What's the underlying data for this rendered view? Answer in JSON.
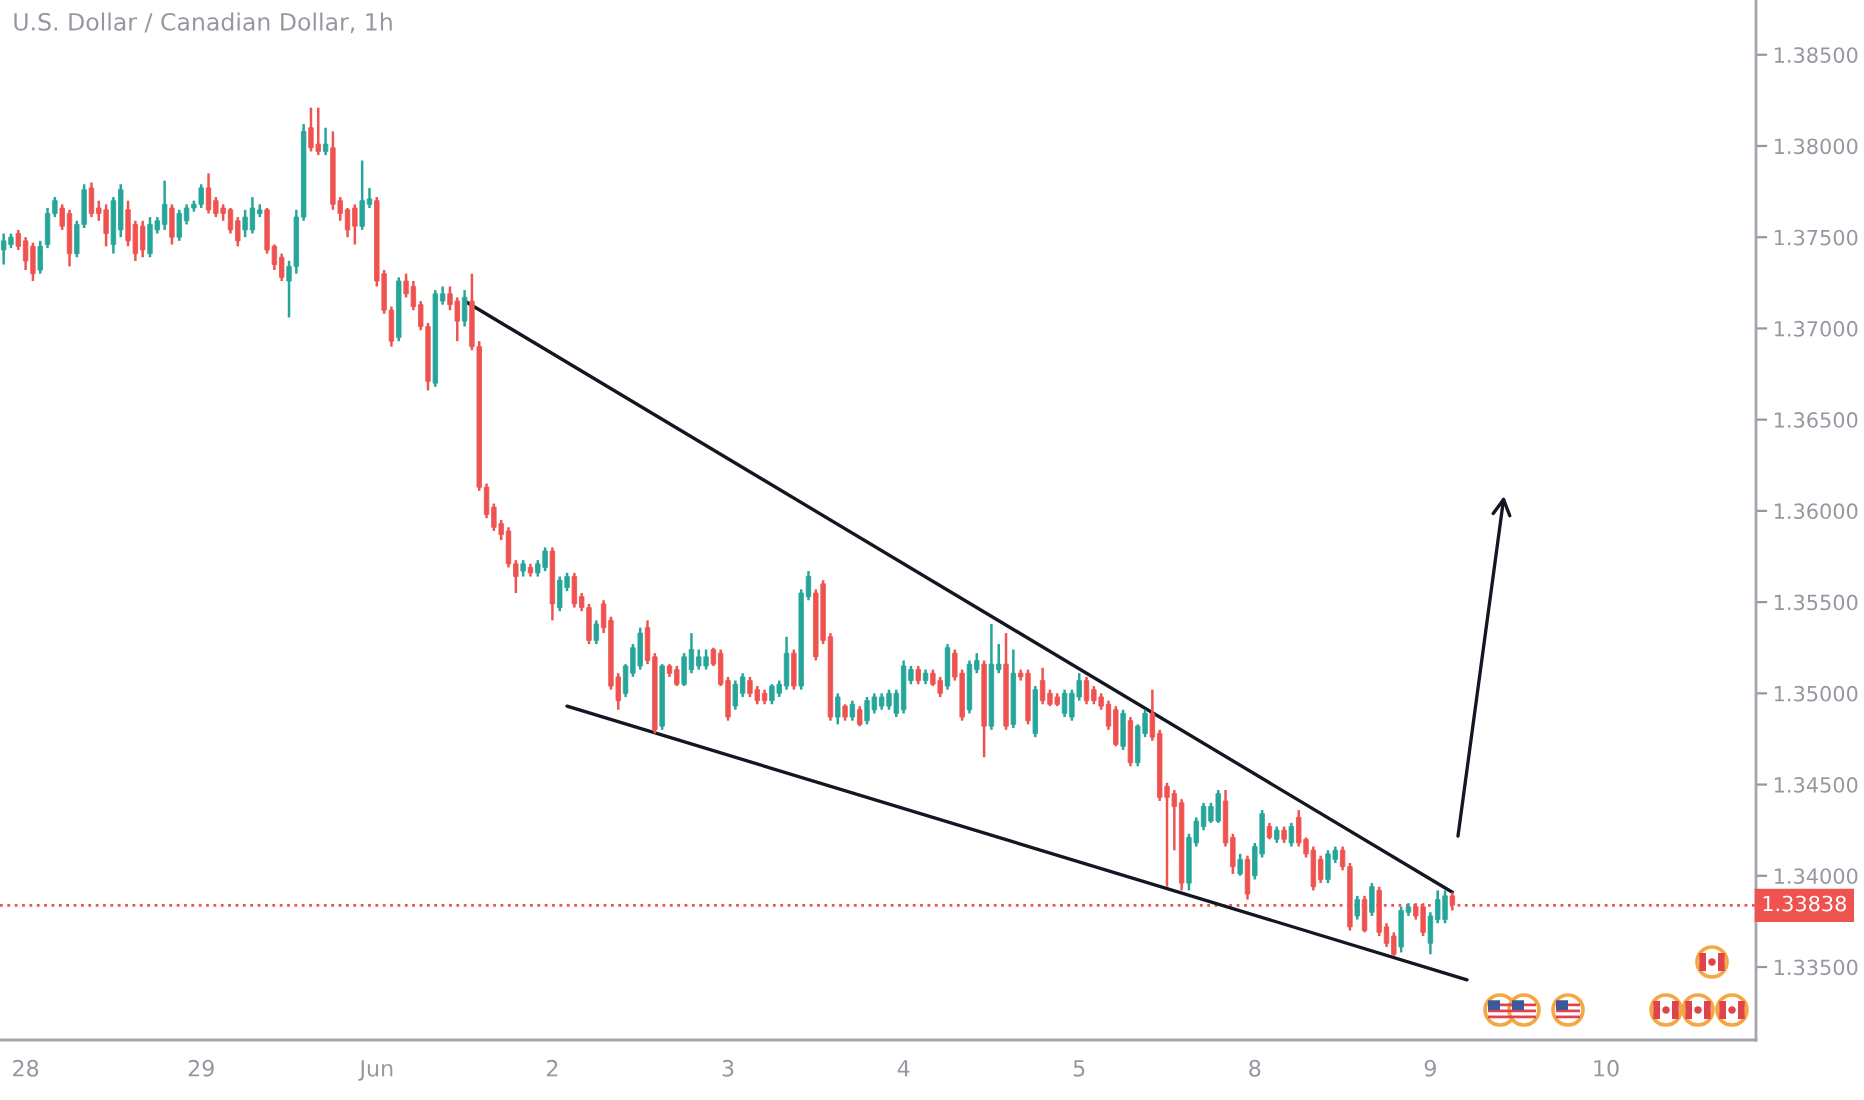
{
  "chart_data": {
    "type": "candlestick",
    "title": "U.S. Dollar / Canadian Dollar, 1h",
    "categories": [
      null,
      null,
      null,
      "28",
      null,
      null,
      null,
      null,
      null,
      null,
      null,
      null,
      null,
      null,
      null,
      null,
      null,
      null,
      null,
      null,
      null,
      null,
      null,
      null,
      null,
      null,
      null,
      "29",
      null,
      null,
      null,
      null,
      null,
      null,
      null,
      null,
      null,
      null,
      null,
      null,
      null,
      null,
      null,
      null,
      null,
      null,
      null,
      null,
      null,
      null,
      null,
      "Jun",
      null,
      null,
      null,
      null,
      null,
      null,
      null,
      null,
      null,
      null,
      null,
      null,
      null,
      null,
      null,
      null,
      null,
      null,
      null,
      null,
      null,
      null,
      null,
      "2",
      null,
      null,
      null,
      null,
      null,
      null,
      null,
      null,
      null,
      null,
      null,
      null,
      null,
      null,
      null,
      null,
      null,
      null,
      null,
      null,
      null,
      null,
      null,
      "3",
      null,
      null,
      null,
      null,
      null,
      null,
      null,
      null,
      null,
      null,
      null,
      null,
      null,
      null,
      null,
      null,
      null,
      null,
      null,
      null,
      null,
      null,
      null,
      "4",
      null,
      null,
      null,
      null,
      null,
      null,
      null,
      null,
      null,
      null,
      null,
      null,
      null,
      null,
      null,
      null,
      null,
      null,
      null,
      null,
      null,
      null,
      null,
      "5",
      null,
      null,
      null,
      null,
      null,
      null,
      null,
      null,
      null,
      null,
      null,
      null,
      null,
      null,
      null,
      null,
      null,
      null,
      null,
      null,
      null,
      null,
      null,
      "8",
      null,
      null,
      null,
      null,
      null,
      null,
      null,
      null,
      null,
      null,
      null,
      null,
      null,
      null,
      null,
      null,
      null,
      null,
      null,
      null,
      null,
      null,
      null,
      "9",
      null,
      null,
      null,
      null,
      null,
      null,
      null,
      null,
      null,
      null,
      null,
      null,
      null,
      null,
      null,
      null,
      null,
      null,
      null,
      null,
      null,
      null,
      null,
      "10",
      null,
      null,
      null,
      null,
      null,
      null,
      null,
      null,
      null,
      null,
      null,
      null,
      null,
      null,
      null,
      null,
      null,
      null,
      null,
      null
    ],
    "ohlc": [
      [
        1.3743,
        1.3752,
        1.3735,
        1.3748
      ],
      [
        1.3746,
        1.3752,
        1.3744,
        1.375
      ],
      [
        1.3752,
        1.3754,
        1.3743,
        1.3745
      ],
      [
        1.3748,
        1.375,
        1.3732,
        1.3737
      ],
      [
        1.3745,
        1.3747,
        1.3726,
        1.373
      ],
      [
        1.3732,
        1.3748,
        1.373,
        1.3745
      ],
      [
        1.3746,
        1.3766,
        1.3744,
        1.3763
      ],
      [
        1.3763,
        1.3772,
        1.3761,
        1.377
      ],
      [
        1.3766,
        1.3768,
        1.3754,
        1.3756
      ],
      [
        1.3763,
        1.3765,
        1.3734,
        1.3741
      ],
      [
        1.3741,
        1.3759,
        1.3739,
        1.3757
      ],
      [
        1.3757,
        1.3779,
        1.3755,
        1.3776
      ],
      [
        1.3777,
        1.378,
        1.3761,
        1.3763
      ],
      [
        1.3766,
        1.377,
        1.3759,
        1.3763
      ],
      [
        1.3765,
        1.3768,
        1.3745,
        1.3752
      ],
      [
        1.3746,
        1.3772,
        1.3741,
        1.377
      ],
      [
        1.3754,
        1.3779,
        1.375,
        1.3776
      ],
      [
        1.3765,
        1.377,
        1.3745,
        1.3748
      ],
      [
        1.3757,
        1.3759,
        1.3737,
        1.3741
      ],
      [
        1.3756,
        1.3759,
        1.3739,
        1.3743
      ],
      [
        1.3741,
        1.3761,
        1.3739,
        1.3757
      ],
      [
        1.3754,
        1.3761,
        1.3752,
        1.3759
      ],
      [
        1.3757,
        1.3781,
        1.3754,
        1.3768
      ],
      [
        1.3766,
        1.3768,
        1.3746,
        1.375
      ],
      [
        1.375,
        1.3765,
        1.3748,
        1.3763
      ],
      [
        1.3759,
        1.3768,
        1.3757,
        1.3766
      ],
      [
        1.3766,
        1.377,
        1.3764,
        1.3768
      ],
      [
        1.3768,
        1.3779,
        1.3766,
        1.3777
      ],
      [
        1.3777,
        1.3785,
        1.3763,
        1.3765
      ],
      [
        1.377,
        1.3772,
        1.3761,
        1.3763
      ],
      [
        1.3766,
        1.3768,
        1.3759,
        1.3763
      ],
      [
        1.3765,
        1.3766,
        1.3752,
        1.3754
      ],
      [
        1.3759,
        1.3761,
        1.3745,
        1.3748
      ],
      [
        1.3754,
        1.3765,
        1.375,
        1.3761
      ],
      [
        1.3754,
        1.3772,
        1.3752,
        1.3766
      ],
      [
        1.3763,
        1.3768,
        1.3761,
        1.3765
      ],
      [
        1.3765,
        1.3766,
        1.3741,
        1.3743
      ],
      [
        1.3745,
        1.3746,
        1.3732,
        1.3735
      ],
      [
        1.3739,
        1.3741,
        1.3726,
        1.3728
      ],
      [
        1.3726,
        1.3737,
        1.3706,
        1.3734
      ],
      [
        1.3734,
        1.3765,
        1.373,
        1.3761
      ],
      [
        1.3761,
        1.3812,
        1.3759,
        1.3808
      ],
      [
        1.381,
        1.3821,
        1.3797,
        1.3799
      ],
      [
        1.3801,
        1.3821,
        1.3795,
        1.3797
      ],
      [
        1.3797,
        1.381,
        1.3795,
        1.3801
      ],
      [
        1.3799,
        1.3808,
        1.3765,
        1.3768
      ],
      [
        1.377,
        1.3772,
        1.3759,
        1.3763
      ],
      [
        1.3765,
        1.3766,
        1.375,
        1.3754
      ],
      [
        1.3766,
        1.3768,
        1.3746,
        1.3756
      ],
      [
        1.3756,
        1.3792,
        1.3754,
        1.377
      ],
      [
        1.3768,
        1.3777,
        1.3766,
        1.3771
      ],
      [
        1.377,
        1.3772,
        1.3723,
        1.3726
      ],
      [
        1.373,
        1.3732,
        1.3708,
        1.371
      ],
      [
        1.371,
        1.3712,
        1.369,
        1.3693
      ],
      [
        1.3695,
        1.3728,
        1.3693,
        1.3726
      ],
      [
        1.3726,
        1.373,
        1.3717,
        1.3719
      ],
      [
        1.3723,
        1.3726,
        1.371,
        1.3712
      ],
      [
        1.3713,
        1.3715,
        1.3699,
        1.3701
      ],
      [
        1.3701,
        1.3703,
        1.3666,
        1.3671
      ],
      [
        1.367,
        1.3721,
        1.3668,
        1.3719
      ],
      [
        1.3715,
        1.3723,
        1.3713,
        1.3719
      ],
      [
        1.3719,
        1.3723,
        1.371,
        1.3713
      ],
      [
        1.3715,
        1.3717,
        1.3693,
        1.3704
      ],
      [
        1.3704,
        1.3721,
        1.3701,
        1.3717
      ],
      [
        1.3715,
        1.373,
        1.3688,
        1.369
      ],
      [
        1.369,
        1.3693,
        1.3611,
        1.3613
      ],
      [
        1.3613,
        1.3615,
        1.3596,
        1.3598
      ],
      [
        1.3602,
        1.3604,
        1.3589,
        1.3591
      ],
      [
        1.3593,
        1.3595,
        1.3584,
        1.3587
      ],
      [
        1.3589,
        1.3591,
        1.3569,
        1.3571
      ],
      [
        1.3571,
        1.3573,
        1.3555,
        1.3564
      ],
      [
        1.3567,
        1.3573,
        1.3564,
        1.3571
      ],
      [
        1.3569,
        1.3571,
        1.3564,
        1.3566
      ],
      [
        1.3566,
        1.3573,
        1.3564,
        1.3571
      ],
      [
        1.3569,
        1.358,
        1.3567,
        1.3578
      ],
      [
        1.3578,
        1.358,
        1.354,
        1.3549
      ],
      [
        1.3547,
        1.3564,
        1.3545,
        1.3562
      ],
      [
        1.3558,
        1.3566,
        1.3556,
        1.3564
      ],
      [
        1.3564,
        1.3566,
        1.3547,
        1.3549
      ],
      [
        1.3553,
        1.3555,
        1.3545,
        1.3547
      ],
      [
        1.3547,
        1.3549,
        1.3527,
        1.3529
      ],
      [
        1.3529,
        1.354,
        1.3527,
        1.3538
      ],
      [
        1.3549,
        1.3551,
        1.3533,
        1.3536
      ],
      [
        1.354,
        1.3542,
        1.3502,
        1.3504
      ],
      [
        1.3509,
        1.3511,
        1.3491,
        1.3496
      ],
      [
        1.35,
        1.3516,
        1.3498,
        1.3515
      ],
      [
        1.3511,
        1.3527,
        1.3509,
        1.3525
      ],
      [
        1.3515,
        1.3536,
        1.3513,
        1.3533
      ],
      [
        1.3536,
        1.354,
        1.3516,
        1.3518
      ],
      [
        1.352,
        1.3522,
        1.3478,
        1.348
      ],
      [
        1.3482,
        1.3516,
        1.348,
        1.3515
      ],
      [
        1.3515,
        1.3516,
        1.3509,
        1.3511
      ],
      [
        1.3513,
        1.3515,
        1.3504,
        1.3505
      ],
      [
        1.3505,
        1.3522,
        1.3504,
        1.352
      ],
      [
        1.3513,
        1.3533,
        1.3511,
        1.3524
      ],
      [
        1.3515,
        1.3524,
        1.3513,
        1.352
      ],
      [
        1.3515,
        1.3524,
        1.3513,
        1.352
      ],
      [
        1.3524,
        1.3525,
        1.3515,
        1.3516
      ],
      [
        1.3522,
        1.3524,
        1.3504,
        1.3505
      ],
      [
        1.3507,
        1.3509,
        1.3485,
        1.3487
      ],
      [
        1.3493,
        1.3507,
        1.3491,
        1.3505
      ],
      [
        1.35,
        1.3511,
        1.3498,
        1.3509
      ],
      [
        1.3507,
        1.3509,
        1.3498,
        1.35
      ],
      [
        1.3502,
        1.3504,
        1.3494,
        1.3496
      ],
      [
        1.35,
        1.3502,
        1.3494,
        1.3496
      ],
      [
        1.3496,
        1.3505,
        1.3494,
        1.3504
      ],
      [
        1.35,
        1.3507,
        1.3498,
        1.3505
      ],
      [
        1.3504,
        1.3531,
        1.3502,
        1.3522
      ],
      [
        1.3522,
        1.3524,
        1.3502,
        1.3504
      ],
      [
        1.3504,
        1.3557,
        1.3502,
        1.3555
      ],
      [
        1.3553,
        1.3567,
        1.3551,
        1.3564
      ],
      [
        1.3555,
        1.3557,
        1.3518,
        1.352
      ],
      [
        1.356,
        1.3562,
        1.3527,
        1.3529
      ],
      [
        1.3531,
        1.3533,
        1.3485,
        1.3487
      ],
      [
        1.3487,
        1.35,
        1.3483,
        1.3498
      ],
      [
        1.3493,
        1.3494,
        1.3485,
        1.3487
      ],
      [
        1.3487,
        1.3496,
        1.3485,
        1.3494
      ],
      [
        1.3491,
        1.3493,
        1.3482,
        1.3483
      ],
      [
        1.3485,
        1.3498,
        1.3483,
        1.3496
      ],
      [
        1.3491,
        1.35,
        1.3489,
        1.3498
      ],
      [
        1.3493,
        1.35,
        1.3491,
        1.3498
      ],
      [
        1.3493,
        1.3502,
        1.3491,
        1.35
      ],
      [
        1.3489,
        1.3502,
        1.3487,
        1.35
      ],
      [
        1.3491,
        1.3518,
        1.3489,
        1.3515
      ],
      [
        1.3507,
        1.3515,
        1.3505,
        1.3513
      ],
      [
        1.3513,
        1.3515,
        1.3505,
        1.3507
      ],
      [
        1.3507,
        1.3513,
        1.3505,
        1.3511
      ],
      [
        1.3511,
        1.3513,
        1.3504,
        1.3505
      ],
      [
        1.3507,
        1.3509,
        1.3498,
        1.35
      ],
      [
        1.3504,
        1.3527,
        1.3502,
        1.3525
      ],
      [
        1.3522,
        1.3524,
        1.3507,
        1.3509
      ],
      [
        1.3511,
        1.3513,
        1.3485,
        1.3487
      ],
      [
        1.3491,
        1.3518,
        1.3489,
        1.3516
      ],
      [
        1.3513,
        1.3522,
        1.3511,
        1.3518
      ],
      [
        1.3516,
        1.3518,
        1.3465,
        1.3482
      ],
      [
        1.3482,
        1.3538,
        1.348,
        1.3516
      ],
      [
        1.3513,
        1.3527,
        1.3511,
        1.3516
      ],
      [
        1.3516,
        1.3533,
        1.348,
        1.3482
      ],
      [
        1.3483,
        1.3524,
        1.3481,
        1.3511
      ],
      [
        1.3511,
        1.3513,
        1.3507,
        1.3509
      ],
      [
        1.3511,
        1.3513,
        1.3483,
        1.3485
      ],
      [
        1.3478,
        1.3504,
        1.3476,
        1.3502
      ],
      [
        1.3507,
        1.3514,
        1.3494,
        1.3496
      ],
      [
        1.35,
        1.3502,
        1.3493,
        1.3494
      ],
      [
        1.3498,
        1.35,
        1.3493,
        1.3494
      ],
      [
        1.3489,
        1.3502,
        1.3487,
        1.35
      ],
      [
        1.3487,
        1.3502,
        1.3485,
        1.35
      ],
      [
        1.3498,
        1.3511,
        1.3496,
        1.3507
      ],
      [
        1.3507,
        1.3509,
        1.3494,
        1.3496
      ],
      [
        1.3502,
        1.3504,
        1.3494,
        1.3496
      ],
      [
        1.3498,
        1.35,
        1.3491,
        1.3493
      ],
      [
        1.3494,
        1.3496,
        1.348,
        1.3482
      ],
      [
        1.3491,
        1.3493,
        1.3471,
        1.3472
      ],
      [
        1.3471,
        1.3491,
        1.3469,
        1.3489
      ],
      [
        1.3485,
        1.3487,
        1.346,
        1.3462
      ],
      [
        1.3462,
        1.3483,
        1.346,
        1.3482
      ],
      [
        1.3478,
        1.3491,
        1.3476,
        1.3489
      ],
      [
        1.3489,
        1.3502,
        1.3474,
        1.3476
      ],
      [
        1.3478,
        1.348,
        1.3441,
        1.3443
      ],
      [
        1.3449,
        1.3451,
        1.3394,
        1.3443
      ],
      [
        1.3445,
        1.3447,
        1.3414,
        1.3438
      ],
      [
        1.344,
        1.3442,
        1.3392,
        1.3396
      ],
      [
        1.3396,
        1.3423,
        1.3392,
        1.3421
      ],
      [
        1.3418,
        1.3432,
        1.3416,
        1.343
      ],
      [
        1.3427,
        1.344,
        1.3425,
        1.3438
      ],
      [
        1.343,
        1.344,
        1.3429,
        1.3438
      ],
      [
        1.343,
        1.3447,
        1.3429,
        1.3445
      ],
      [
        1.3441,
        1.3447,
        1.3416,
        1.3418
      ],
      [
        1.3421,
        1.3423,
        1.3401,
        1.3405
      ],
      [
        1.3401,
        1.3412,
        1.34,
        1.3409
      ],
      [
        1.3409,
        1.3411,
        1.3387,
        1.339
      ],
      [
        1.34,
        1.3418,
        1.3398,
        1.3416
      ],
      [
        1.3412,
        1.3436,
        1.341,
        1.3434
      ],
      [
        1.3427,
        1.3429,
        1.342,
        1.3421
      ],
      [
        1.342,
        1.3427,
        1.3418,
        1.3425
      ],
      [
        1.3425,
        1.3427,
        1.3418,
        1.342
      ],
      [
        1.3418,
        1.3429,
        1.3416,
        1.3427
      ],
      [
        1.3432,
        1.3436,
        1.3416,
        1.3418
      ],
      [
        1.342,
        1.3421,
        1.341,
        1.3412
      ],
      [
        1.3414,
        1.3416,
        1.3392,
        1.3394
      ],
      [
        1.3409,
        1.3411,
        1.3396,
        1.3398
      ],
      [
        1.3398,
        1.3414,
        1.3396,
        1.3412
      ],
      [
        1.3409,
        1.3416,
        1.3407,
        1.3414
      ],
      [
        1.3414,
        1.3416,
        1.3403,
        1.3405
      ],
      [
        1.3405,
        1.3407,
        1.337,
        1.3372
      ],
      [
        1.3378,
        1.3389,
        1.3376,
        1.3387
      ],
      [
        1.3387,
        1.3389,
        1.3369,
        1.337
      ],
      [
        1.338,
        1.3396,
        1.3378,
        1.3394
      ],
      [
        1.3392,
        1.3394,
        1.3367,
        1.3369
      ],
      [
        1.3372,
        1.3374,
        1.3361,
        1.3363
      ],
      [
        1.3367,
        1.3369,
        1.3356,
        1.3357
      ],
      [
        1.3361,
        1.3383,
        1.3358,
        1.3381
      ],
      [
        1.338,
        1.3385,
        1.3378,
        1.3383
      ],
      [
        1.3383,
        1.3385,
        1.3376,
        1.3378
      ],
      [
        1.3383,
        1.3385,
        1.3367,
        1.3369
      ],
      [
        1.3363,
        1.338,
        1.3357,
        1.3378
      ],
      [
        1.3376,
        1.3392,
        1.3374,
        1.3387
      ],
      [
        1.3376,
        1.3392,
        1.3374,
        1.3389
      ],
      [
        1.3389,
        1.3391,
        1.3381,
        1.3384
      ],
      null,
      null,
      null,
      null,
      null,
      null,
      null,
      null,
      null,
      null,
      null,
      null,
      null,
      null,
      null,
      null,
      null,
      null,
      null,
      null,
      null,
      null,
      null,
      null,
      null,
      null,
      null,
      null,
      null,
      null,
      null,
      null,
      null,
      null,
      null,
      null,
      null,
      null,
      null,
      null,
      null
    ],
    "colors": [
      "#26a69a",
      "#26a69a",
      "#ef5350",
      "#ef5350",
      "#ef5350",
      "#26a69a",
      "#26a69a",
      "#26a69a",
      "#ef5350",
      "#ef5350",
      "#26a69a",
      "#26a69a",
      "#ef5350",
      "#ef5350",
      "#ef5350",
      "#26a69a",
      "#26a69a",
      "#ef5350",
      "#ef5350",
      "#ef5350",
      "#26a69a",
      "#26a69a",
      "#26a69a",
      "#ef5350",
      "#26a69a",
      "#26a69a",
      "#26a69a",
      "#26a69a",
      "#ef5350",
      "#ef5350",
      "#ef5350",
      "#ef5350",
      "#ef5350",
      "#26a69a",
      "#26a69a",
      "#26a69a",
      "#ef5350",
      "#ef5350",
      "#ef5350",
      "#26a69a",
      "#26a69a",
      "#26a69a",
      "#ef5350",
      "#ef5350",
      "#26a69a",
      "#ef5350",
      "#ef5350",
      "#ef5350",
      "#ef5350",
      "#26a69a",
      "#26a69a",
      "#ef5350",
      "#ef5350",
      "#ef5350",
      "#26a69a",
      "#ef5350",
      "#ef5350",
      "#ef5350",
      "#ef5350",
      "#26a69a",
      "#26a69a",
      "#ef5350",
      "#ef5350",
      "#26a69a",
      "#ef5350",
      "#ef5350",
      "#ef5350",
      "#ef5350",
      "#ef5350",
      "#ef5350",
      "#ef5350",
      "#26a69a",
      "#ef5350",
      "#26a69a",
      "#26a69a",
      "#ef5350",
      "#26a69a",
      "#26a69a",
      "#ef5350",
      "#ef5350",
      "#ef5350",
      "#26a69a",
      "#ef5350",
      "#ef5350",
      "#ef5350",
      "#26a69a",
      "#26a69a",
      "#26a69a",
      "#ef5350",
      "#ef5350",
      "#26a69a",
      "#ef5350",
      "#ef5350",
      "#26a69a",
      "#26a69a",
      "#26a69a",
      "#26a69a",
      "#ef5350",
      "#ef5350",
      "#ef5350",
      "#26a69a",
      "#26a69a",
      "#ef5350",
      "#ef5350",
      "#ef5350",
      "#26a69a",
      "#26a69a",
      "#26a69a",
      "#ef5350",
      "#26a69a",
      "#26a69a",
      "#ef5350",
      "#ef5350",
      "#ef5350",
      "#26a69a",
      "#ef5350",
      "#26a69a",
      "#ef5350",
      "#26a69a",
      "#26a69a",
      "#26a69a",
      "#26a69a",
      "#26a69a",
      "#26a69a",
      "#26a69a",
      "#ef5350",
      "#26a69a",
      "#ef5350",
      "#ef5350",
      "#26a69a",
      "#ef5350",
      "#ef5350",
      "#26a69a",
      "#26a69a",
      "#ef5350",
      "#26a69a",
      "#26a69a",
      "#ef5350",
      "#26a69a",
      "#ef5350",
      "#ef5350",
      "#26a69a",
      "#ef5350",
      "#ef5350",
      "#ef5350",
      "#26a69a",
      "#26a69a",
      "#26a69a",
      "#ef5350",
      "#ef5350",
      "#ef5350",
      "#ef5350",
      "#ef5350",
      "#26a69a",
      "#ef5350",
      "#26a69a",
      "#26a69a",
      "#ef5350",
      "#ef5350",
      "#ef5350",
      "#ef5350",
      "#ef5350",
      "#26a69a",
      "#26a69a",
      "#26a69a",
      "#26a69a",
      "#26a69a",
      "#ef5350",
      "#ef5350",
      "#26a69a",
      "#ef5350",
      "#26a69a",
      "#26a69a",
      "#ef5350",
      "#26a69a",
      "#ef5350",
      "#26a69a",
      "#ef5350",
      "#ef5350",
      "#ef5350",
      "#ef5350",
      "#26a69a",
      "#26a69a",
      "#ef5350",
      "#ef5350",
      "#26a69a",
      "#ef5350",
      "#26a69a",
      "#ef5350",
      "#ef5350",
      "#ef5350",
      "#26a69a",
      "#26a69a",
      "#ef5350",
      "#ef5350",
      "#26a69a",
      "#26a69a",
      "#26a69a",
      "#ef5350",
      null,
      null,
      null,
      null,
      null,
      null,
      null,
      null,
      null,
      null,
      null,
      null,
      null,
      null,
      null,
      null,
      null,
      null,
      null,
      null,
      null,
      null,
      null,
      null,
      null,
      null,
      null,
      null,
      null,
      null,
      null,
      null,
      null,
      null,
      null,
      null,
      null,
      null,
      null,
      null,
      null
    ],
    "ylim": [
      1.331,
      1.388
    ],
    "yticks": [
      {
        "value": 1.335,
        "label": "1.33500"
      },
      {
        "value": 1.34,
        "label": "1.34000"
      },
      {
        "value": 1.345,
        "label": "1.34500"
      },
      {
        "value": 1.35,
        "label": "1.35000"
      },
      {
        "value": 1.355,
        "label": "1.35500"
      },
      {
        "value": 1.36,
        "label": "1.36000"
      },
      {
        "value": 1.365,
        "label": "1.36500"
      },
      {
        "value": 1.37,
        "label": "1.37000"
      },
      {
        "value": 1.375,
        "label": "1.37500"
      },
      {
        "value": 1.38,
        "label": "1.38000"
      },
      {
        "value": 1.385,
        "label": "1.38500"
      }
    ],
    "ref_lines": [
      {
        "axis": "y",
        "value": 1.33838,
        "label": "1.33838",
        "color": "#ef5350",
        "line_style": "dotted"
      }
    ],
    "series": [
      {
        "type": "line",
        "color": "#131722",
        "values": [
          null,
          null,
          null,
          null,
          null,
          null,
          null,
          null,
          null,
          null,
          null,
          null,
          null,
          null,
          null,
          null,
          null,
          null,
          null,
          null,
          null,
          null,
          null,
          null,
          null,
          null,
          null,
          null,
          null,
          null,
          null,
          null,
          null,
          null,
          null,
          null,
          null,
          null,
          null,
          null,
          null,
          null,
          null,
          null,
          null,
          null,
          null,
          null,
          null,
          null,
          null,
          null,
          null,
          null,
          null,
          null,
          null,
          null,
          null,
          null,
          null,
          null,
          null,
          1.3715,
          null,
          null,
          null,
          null,
          null,
          null,
          null,
          null,
          null,
          null,
          null,
          null,
          null,
          null,
          null,
          null,
          null,
          null,
          null,
          null,
          null,
          null,
          null,
          null,
          null,
          null,
          null,
          null,
          null,
          null,
          null,
          null,
          null,
          null,
          null,
          null,
          null,
          null,
          null,
          null,
          null,
          null,
          null,
          null,
          null,
          null,
          null,
          null,
          null,
          null,
          null,
          null,
          null,
          null,
          null,
          null,
          null,
          null,
          null,
          null,
          null,
          null,
          null,
          null,
          null,
          null,
          null,
          null,
          null,
          null,
          null,
          null,
          null,
          null,
          null,
          null,
          null,
          null,
          null,
          null,
          null,
          null,
          null,
          null,
          null,
          null,
          null,
          null,
          null,
          null,
          null,
          null,
          null,
          null,
          null,
          null,
          null,
          null,
          null,
          null,
          null,
          null,
          null,
          null,
          null,
          null,
          null,
          null,
          null,
          null,
          null,
          null,
          null,
          null,
          null,
          null,
          null,
          null,
          null,
          null,
          null,
          null,
          null,
          null,
          null,
          null,
          null,
          null,
          null,
          null,
          null,
          null,
          null,
          null,
          1.3391,
          null,
          null,
          null,
          null,
          null,
          null,
          null,
          null,
          null,
          null,
          null,
          null,
          null,
          null,
          null,
          null,
          null,
          null,
          null,
          null,
          null,
          null,
          null,
          null,
          null,
          null,
          null,
          null,
          null,
          null,
          null,
          null,
          null,
          null,
          null,
          null,
          null,
          null,
          null,
          null,
          null
        ]
      },
      {
        "type": "line",
        "color": "#131722",
        "values": [
          null,
          null,
          null,
          null,
          null,
          null,
          null,
          null,
          null,
          null,
          null,
          null,
          null,
          null,
          null,
          null,
          null,
          null,
          null,
          null,
          null,
          null,
          null,
          null,
          null,
          null,
          null,
          null,
          null,
          null,
          null,
          null,
          null,
          null,
          null,
          null,
          null,
          null,
          null,
          null,
          null,
          null,
          null,
          null,
          null,
          null,
          null,
          null,
          null,
          null,
          null,
          null,
          null,
          null,
          null,
          null,
          null,
          null,
          null,
          null,
          null,
          null,
          null,
          null,
          null,
          null,
          null,
          null,
          null,
          null,
          null,
          null,
          null,
          null,
          null,
          null,
          null,
          1.3493,
          null,
          null,
          null,
          null,
          null,
          null,
          null,
          null,
          null,
          null,
          null,
          null,
          null,
          null,
          null,
          null,
          null,
          null,
          null,
          null,
          null,
          null,
          null,
          null,
          null,
          null,
          null,
          null,
          null,
          null,
          null,
          null,
          null,
          null,
          null,
          null,
          null,
          null,
          null,
          null,
          null,
          null,
          null,
          null,
          null,
          null,
          null,
          null,
          null,
          null,
          null,
          null,
          null,
          null,
          null,
          null,
          null,
          null,
          null,
          null,
          null,
          null,
          null,
          null,
          null,
          null,
          null,
          null,
          null,
          null,
          null,
          null,
          null,
          null,
          null,
          null,
          null,
          null,
          null,
          null,
          null,
          null,
          null,
          null,
          null,
          null,
          null,
          null,
          null,
          null,
          null,
          null,
          null,
          null,
          null,
          null,
          null,
          null,
          null,
          null,
          null,
          null,
          null,
          null,
          null,
          null,
          null,
          null,
          null,
          null,
          null,
          null,
          null,
          null,
          null,
          null,
          null,
          null,
          null,
          null,
          null,
          null,
          1.3343,
          null,
          null,
          null,
          null,
          null,
          null,
          null,
          null,
          null,
          null,
          null,
          null,
          null,
          null,
          null,
          null,
          null,
          null,
          null,
          null,
          null,
          null,
          null,
          null,
          null,
          null,
          null,
          null,
          null,
          null,
          null,
          null,
          null,
          null,
          null,
          null,
          null,
          null,
          null
        ]
      }
    ]
  }
}
